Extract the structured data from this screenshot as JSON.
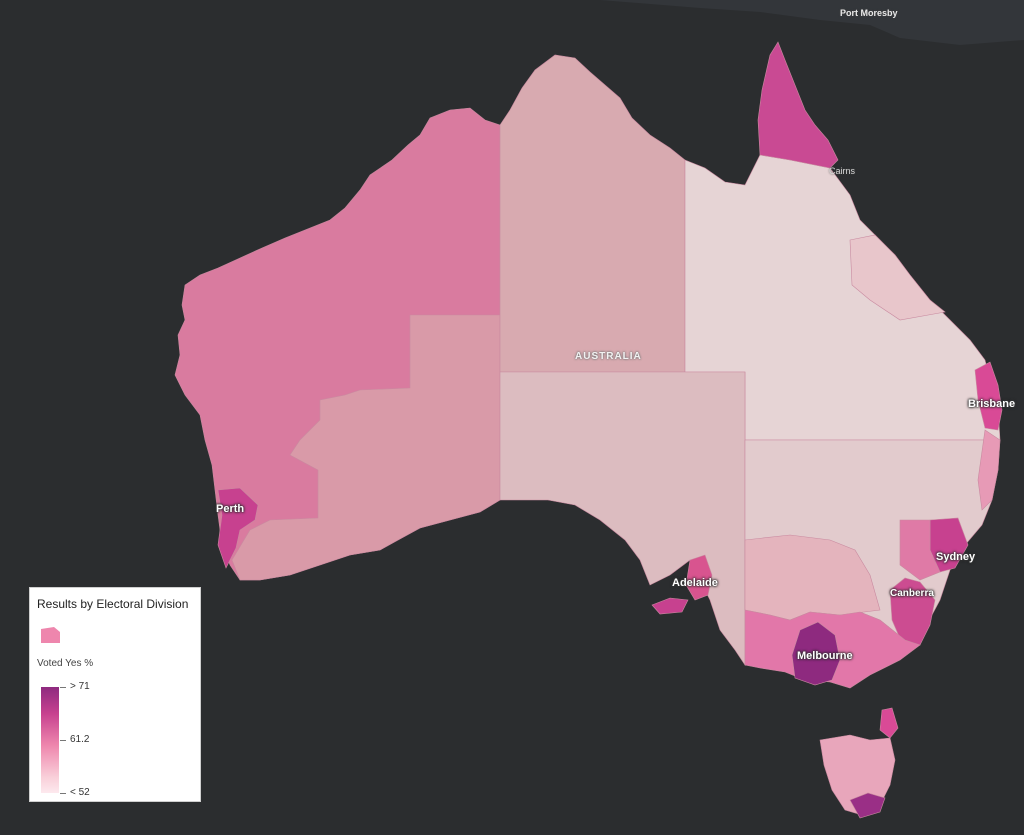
{
  "map": {
    "country_label": "AUSTRALIA",
    "cities": {
      "port_moresby": "Port Moresby",
      "cairns": "Cairns",
      "brisbane": "Brisbane",
      "sydney": "Sydney",
      "canberra": "Canberra",
      "melbourne": "Melbourne",
      "adelaide": "Adelaide",
      "perth": "Perth"
    }
  },
  "legend": {
    "title": "Results by Electoral Division",
    "field": "Voted Yes %",
    "max_label": "> 71",
    "mid_label": "61.2",
    "min_label": "< 52"
  },
  "colors": {
    "background": "#2b2d2f",
    "land": "#33363a",
    "low": "#fde9ee",
    "mid": "#ee86ad",
    "high": "#8e2a7f"
  }
}
